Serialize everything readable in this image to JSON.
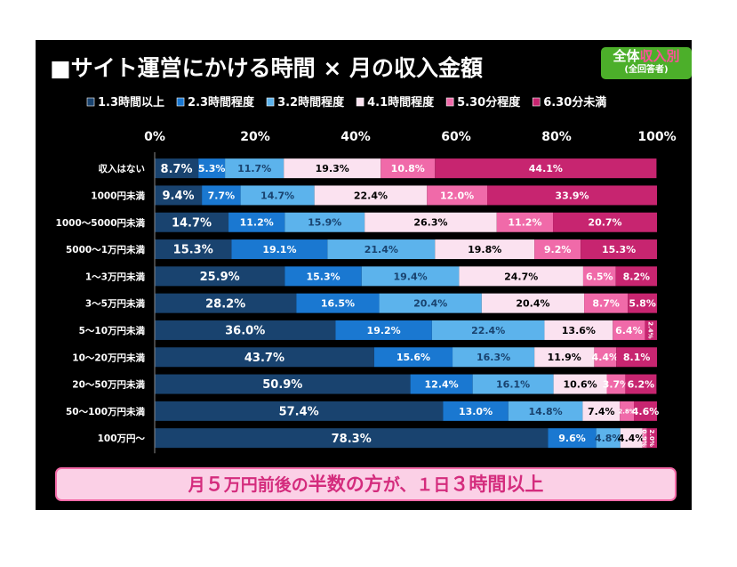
{
  "page": {
    "title": "■サイト運営にかける時間 × 月の収入金額",
    "badge_line1_a": "全体",
    "badge_line1_b": "収入別",
    "badge_line2": "(全回答者)",
    "footer_a": "月",
    "footer_b": "５",
    "footer_c": "万円前後の",
    "footer_d": "半数の方",
    "footer_e": "が、１日",
    "footer_f": "３",
    "footer_g": "時間以上"
  },
  "colors": [
    "#19436f",
    "#1a78d1",
    "#5cb3ec",
    "#fbe2f0",
    "#f06aa9",
    "#c72570"
  ],
  "label_colors": [
    "#ffffff",
    "#ffffff",
    "#19436f",
    "#000000",
    "#ffffff",
    "#ffffff"
  ],
  "chart_data": {
    "type": "bar",
    "orientation": "horizontal",
    "stacked": true,
    "xlim": [
      0,
      100
    ],
    "x_ticks": [
      "0%",
      "20%",
      "40%",
      "60%",
      "80%",
      "100%"
    ],
    "legend_position": "top",
    "categories": [
      "収入はない",
      "1000円未満",
      "1000～5000円未満",
      "5000～1万円未満",
      "1～3万円未満",
      "3～5万円未満",
      "5～10万円未満",
      "10～20万円未満",
      "20～50万円未満",
      "50～100万円未満",
      "100万円～"
    ],
    "series": [
      {
        "name": "1.3時間以上",
        "values": [
          8.7,
          9.4,
          14.7,
          15.3,
          25.9,
          28.2,
          36.0,
          43.7,
          50.9,
          57.4,
          78.3
        ]
      },
      {
        "name": "2.3時間程度",
        "values": [
          5.3,
          7.7,
          11.2,
          19.1,
          15.3,
          16.5,
          19.2,
          15.6,
          12.4,
          13.0,
          9.6
        ]
      },
      {
        "name": "3.2時間程度",
        "values": [
          11.7,
          14.7,
          15.9,
          21.4,
          19.4,
          20.4,
          22.4,
          16.3,
          16.1,
          14.8,
          4.8
        ]
      },
      {
        "name": "4.1時間程度",
        "values": [
          19.3,
          22.4,
          26.3,
          19.8,
          24.7,
          20.4,
          13.6,
          11.9,
          10.6,
          7.4,
          4.4
        ]
      },
      {
        "name": "5.30分程度",
        "values": [
          10.8,
          12.0,
          11.2,
          9.2,
          6.5,
          8.7,
          6.4,
          4.4,
          3.7,
          2.8,
          0.9
        ]
      },
      {
        "name": "6.30分未満",
        "values": [
          44.1,
          33.9,
          20.7,
          15.3,
          8.2,
          5.8,
          2.4,
          8.1,
          6.2,
          4.6,
          2.0
        ]
      }
    ],
    "labels": [
      [
        "8.7%",
        "5.3%",
        "11.7%",
        "19.3%",
        "10.8%",
        "44.1%"
      ],
      [
        "9.4%",
        "7.7%",
        "14.7%",
        "22.4%",
        "12.0%",
        "33.9%"
      ],
      [
        "14.7%",
        "11.2%",
        "15.9%",
        "26.3%",
        "11.2%",
        "20.7%"
      ],
      [
        "15.3%",
        "19.1%",
        "21.4%",
        "19.8%",
        "9.2%",
        "15.3%"
      ],
      [
        "25.9%",
        "15.3%",
        "19.4%",
        "24.7%",
        "6.5%",
        "8.2%"
      ],
      [
        "28.2%",
        "16.5%",
        "20.4%",
        "20.4%",
        "8.7%",
        "5.8%"
      ],
      [
        "36.0%",
        "19.2%",
        "22.4%",
        "13.6%",
        "6.4%",
        "2.4%"
      ],
      [
        "43.7%",
        "15.6%",
        "16.3%",
        "11.9%",
        "4.4%",
        "8.1%"
      ],
      [
        "50.9%",
        "12.4%",
        "16.1%",
        "10.6%",
        "3.7%",
        "6.2%"
      ],
      [
        "57.4%",
        "13.0%",
        "14.8%",
        "7.4%",
        "2.8%",
        "4.6%"
      ],
      [
        "78.3%",
        "9.6%",
        "4.8%",
        "4.4%",
        "0.9%",
        "2.0%"
      ]
    ]
  }
}
